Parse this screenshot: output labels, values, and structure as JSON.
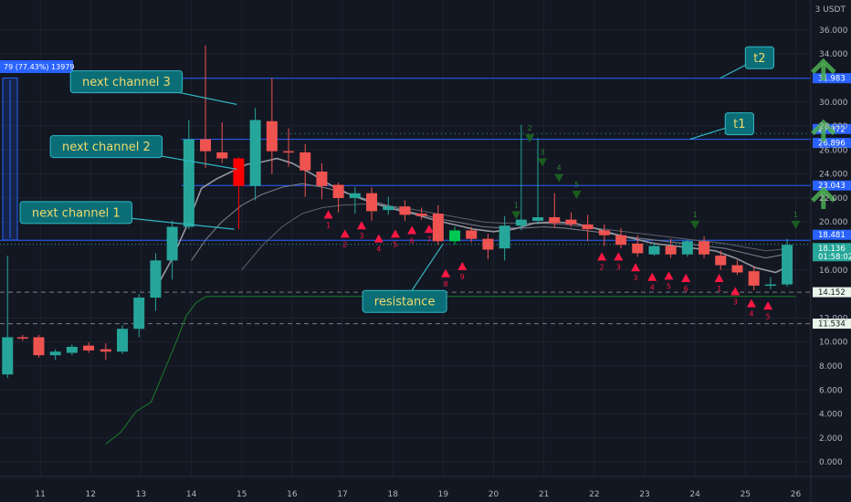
{
  "header": {
    "currency": "3 USDT",
    "range_label": "79 (77.43%) 13979"
  },
  "chart_data": {
    "type": "candlestick",
    "title": "",
    "xlabel": "",
    "ylabel": "",
    "ylim": [
      -1.2,
      38.5
    ],
    "xlim": [
      10.2,
      26.3
    ],
    "y_ticks": [
      "36.000",
      "34.000",
      "30.000",
      "28.000",
      "26.000",
      "24.000",
      "22.000",
      "20.000",
      "16.000",
      "12.000",
      "10.000",
      "8.000",
      "6.000",
      "4.000",
      "2.000",
      "0.000"
    ],
    "y_tick_values": [
      36,
      34,
      30,
      28,
      26,
      24,
      22,
      20,
      16,
      12,
      10,
      8,
      6,
      4,
      2,
      0
    ],
    "x_ticks": [
      "11",
      "12",
      "13",
      "14",
      "15",
      "16",
      "17",
      "18",
      "19",
      "20",
      "21",
      "22",
      "23",
      "24",
      "25",
      "26"
    ],
    "x_tick_values": [
      11,
      12,
      13,
      14,
      15,
      16,
      17,
      18,
      19,
      20,
      21,
      22,
      23,
      24,
      25,
      26
    ],
    "grid": true,
    "candles": [
      {
        "t": 10.35,
        "o": 7.3,
        "h": 17.2,
        "l": 7.0,
        "c": 10.4
      },
      {
        "t": 10.65,
        "o": 10.4,
        "h": 10.6,
        "l": 10.1,
        "c": 10.3
      },
      {
        "t": 10.97,
        "o": 10.4,
        "h": 10.6,
        "l": 8.7,
        "c": 8.9
      },
      {
        "t": 11.3,
        "o": 8.9,
        "h": 9.4,
        "l": 8.5,
        "c": 9.2
      },
      {
        "t": 11.63,
        "o": 9.1,
        "h": 9.8,
        "l": 8.9,
        "c": 9.6
      },
      {
        "t": 11.96,
        "o": 9.7,
        "h": 10.0,
        "l": 9.1,
        "c": 9.3
      },
      {
        "t": 12.3,
        "o": 9.4,
        "h": 9.9,
        "l": 8.5,
        "c": 9.2
      },
      {
        "t": 12.63,
        "o": 9.2,
        "h": 11.4,
        "l": 9.0,
        "c": 11.1
      },
      {
        "t": 12.96,
        "o": 11.1,
        "h": 14.0,
        "l": 10.4,
        "c": 13.7
      },
      {
        "t": 13.29,
        "o": 13.7,
        "h": 17.4,
        "l": 12.6,
        "c": 16.8
      },
      {
        "t": 13.62,
        "o": 16.8,
        "h": 20.1,
        "l": 15.2,
        "c": 19.6
      },
      {
        "t": 13.95,
        "o": 19.6,
        "h": 28.5,
        "l": 19.4,
        "c": 26.9
      },
      {
        "t": 14.28,
        "o": 26.9,
        "h": 34.7,
        "l": 24.5,
        "c": 25.9
      },
      {
        "t": 14.61,
        "o": 25.8,
        "h": 28.3,
        "l": 24.9,
        "c": 25.3
      },
      {
        "t": 14.94,
        "o": 25.3,
        "h": 25.4,
        "l": 19.4,
        "c": 23.0
      },
      {
        "t": 15.27,
        "o": 23.0,
        "h": 29.5,
        "l": 21.8,
        "c": 28.5
      },
      {
        "t": 15.6,
        "o": 28.4,
        "h": 32.0,
        "l": 24.0,
        "c": 25.9
      },
      {
        "t": 15.93,
        "o": 25.9,
        "h": 27.8,
        "l": 24.6,
        "c": 25.8
      },
      {
        "t": 16.26,
        "o": 25.8,
        "h": 26.5,
        "l": 22.1,
        "c": 24.3
      },
      {
        "t": 16.59,
        "o": 24.2,
        "h": 24.9,
        "l": 21.9,
        "c": 23.0
      },
      {
        "t": 16.92,
        "o": 23.1,
        "h": 23.3,
        "l": 20.8,
        "c": 22.0
      },
      {
        "t": 17.25,
        "o": 22.0,
        "h": 22.9,
        "l": 20.7,
        "c": 22.4
      },
      {
        "t": 17.58,
        "o": 22.4,
        "h": 22.9,
        "l": 20.1,
        "c": 20.9
      },
      {
        "t": 17.91,
        "o": 21.0,
        "h": 22.1,
        "l": 20.6,
        "c": 21.3
      },
      {
        "t": 18.24,
        "o": 21.3,
        "h": 21.8,
        "l": 20.1,
        "c": 20.6
      },
      {
        "t": 18.57,
        "o": 20.7,
        "h": 21.2,
        "l": 20.2,
        "c": 20.5
      },
      {
        "t": 18.9,
        "o": 20.7,
        "h": 21.4,
        "l": 18.1,
        "c": 18.4
      },
      {
        "t": 19.23,
        "o": 18.4,
        "h": 19.6,
        "l": 18.1,
        "c": 19.3
      },
      {
        "t": 19.56,
        "o": 19.3,
        "h": 19.6,
        "l": 18.3,
        "c": 18.6
      },
      {
        "t": 19.89,
        "o": 18.6,
        "h": 19.0,
        "l": 16.9,
        "c": 17.7
      },
      {
        "t": 20.22,
        "o": 17.8,
        "h": 20.5,
        "l": 16.8,
        "c": 19.7
      },
      {
        "t": 20.55,
        "o": 19.7,
        "h": 28.1,
        "l": 19.3,
        "c": 20.2
      },
      {
        "t": 20.88,
        "o": 20.1,
        "h": 27.0,
        "l": 19.8,
        "c": 20.4
      },
      {
        "t": 21.21,
        "o": 20.4,
        "h": 22.4,
        "l": 19.5,
        "c": 19.9
      },
      {
        "t": 21.54,
        "o": 20.2,
        "h": 20.8,
        "l": 19.6,
        "c": 19.8
      },
      {
        "t": 21.87,
        "o": 19.8,
        "h": 20.6,
        "l": 18.4,
        "c": 19.4
      },
      {
        "t": 22.2,
        "o": 19.3,
        "h": 19.8,
        "l": 18.0,
        "c": 18.9
      },
      {
        "t": 22.53,
        "o": 18.9,
        "h": 19.5,
        "l": 17.8,
        "c": 18.1
      },
      {
        "t": 22.86,
        "o": 18.2,
        "h": 18.9,
        "l": 17.1,
        "c": 17.4
      },
      {
        "t": 23.19,
        "o": 17.3,
        "h": 18.3,
        "l": 17.2,
        "c": 18.0
      },
      {
        "t": 23.52,
        "o": 18.0,
        "h": 18.6,
        "l": 17.0,
        "c": 17.3
      },
      {
        "t": 23.85,
        "o": 17.3,
        "h": 18.5,
        "l": 17.1,
        "c": 18.4
      },
      {
        "t": 24.18,
        "o": 18.4,
        "h": 18.8,
        "l": 17.0,
        "c": 17.3
      },
      {
        "t": 24.51,
        "o": 17.2,
        "h": 17.6,
        "l": 16.0,
        "c": 16.4
      },
      {
        "t": 24.84,
        "o": 16.4,
        "h": 16.8,
        "l": 15.6,
        "c": 15.8
      },
      {
        "t": 25.17,
        "o": 15.9,
        "h": 16.3,
        "l": 14.3,
        "c": 14.7
      },
      {
        "t": 25.5,
        "o": 14.7,
        "h": 15.4,
        "l": 14.4,
        "c": 14.8
      },
      {
        "t": 25.83,
        "o": 14.8,
        "h": 18.6,
        "l": 14.6,
        "c": 18.1
      }
    ],
    "levels": [
      {
        "name": "t2",
        "value": 31.983,
        "label": "31.983",
        "color": "#2962ff"
      },
      {
        "name": "t1",
        "value": 26.896,
        "label": "26.896",
        "color": "#2962ff"
      },
      {
        "name": "dotted",
        "value": 27.372,
        "label": "27.372",
        "color": "#2962ff"
      },
      {
        "name": "level-23",
        "value": 23.043,
        "label": "23.043",
        "color": "#2962ff"
      },
      {
        "name": "level-18",
        "value": 18.481,
        "label": "18.481",
        "color": "#2962ff"
      },
      {
        "name": "current",
        "value": 18.136,
        "label": "18.136",
        "sub": "01:58:02",
        "color": "#26a69a"
      },
      {
        "name": "support-14",
        "value": 14.152,
        "label": "14.152",
        "color": "#787b86"
      },
      {
        "name": "support-11",
        "value": 11.534,
        "label": "11.534",
        "color": "#787b86"
      }
    ],
    "ma_fast": [
      [
        13.3,
        14.5
      ],
      [
        13.6,
        16.8
      ],
      [
        13.9,
        19.6
      ],
      [
        14.2,
        22.8
      ],
      [
        14.5,
        23.6
      ],
      [
        14.8,
        24.2
      ],
      [
        15.1,
        24.8
      ],
      [
        15.4,
        25.0
      ],
      [
        15.7,
        25.3
      ],
      [
        16.0,
        24.9
      ],
      [
        16.4,
        24.0
      ],
      [
        16.8,
        23.0
      ],
      [
        17.2,
        22.2
      ],
      [
        17.6,
        21.6
      ],
      [
        18.0,
        21.1
      ],
      [
        18.4,
        20.7
      ],
      [
        18.8,
        20.2
      ],
      [
        19.2,
        19.8
      ],
      [
        19.6,
        19.4
      ],
      [
        20.0,
        19.2
      ],
      [
        20.4,
        19.4
      ],
      [
        20.8,
        19.9
      ],
      [
        21.2,
        20.0
      ],
      [
        21.6,
        19.9
      ],
      [
        22.0,
        19.5
      ],
      [
        22.4,
        19.0
      ],
      [
        22.8,
        18.6
      ],
      [
        23.2,
        18.2
      ],
      [
        23.6,
        18.0
      ],
      [
        24.0,
        17.8
      ],
      [
        24.4,
        17.6
      ],
      [
        24.8,
        17.0
      ],
      [
        25.2,
        16.2
      ],
      [
        25.6,
        15.8
      ],
      [
        25.9,
        16.4
      ]
    ],
    "ma_slow": [
      [
        14.0,
        16.8
      ],
      [
        14.3,
        18.6
      ],
      [
        14.6,
        20.0
      ],
      [
        15.0,
        21.4
      ],
      [
        15.4,
        22.3
      ],
      [
        15.8,
        22.9
      ],
      [
        16.2,
        23.2
      ],
      [
        16.6,
        22.9
      ],
      [
        17.0,
        22.5
      ],
      [
        17.4,
        22.0
      ],
      [
        17.8,
        21.5
      ],
      [
        18.2,
        21.0
      ],
      [
        18.6,
        20.6
      ],
      [
        19.0,
        20.2
      ],
      [
        19.4,
        19.9
      ],
      [
        19.8,
        19.6
      ],
      [
        20.2,
        19.5
      ],
      [
        20.6,
        19.5
      ],
      [
        21.0,
        19.6
      ],
      [
        21.4,
        19.5
      ],
      [
        21.8,
        19.3
      ],
      [
        22.2,
        19.1
      ],
      [
        22.6,
        18.8
      ],
      [
        23.0,
        18.6
      ],
      [
        23.4,
        18.4
      ],
      [
        23.8,
        18.2
      ],
      [
        24.2,
        18.0
      ],
      [
        24.6,
        17.8
      ],
      [
        25.0,
        17.4
      ],
      [
        25.4,
        17.0
      ],
      [
        25.9,
        17.4
      ]
    ],
    "ma_long": [
      [
        15.0,
        16.0
      ],
      [
        15.4,
        18.0
      ],
      [
        15.8,
        19.6
      ],
      [
        16.2,
        20.7
      ],
      [
        16.6,
        21.2
      ],
      [
        17.0,
        21.4
      ],
      [
        17.4,
        21.5
      ],
      [
        17.8,
        21.4
      ],
      [
        18.2,
        21.2
      ],
      [
        18.6,
        20.9
      ],
      [
        19.0,
        20.6
      ],
      [
        19.4,
        20.3
      ],
      [
        19.8,
        20.0
      ],
      [
        20.2,
        19.9
      ],
      [
        20.6,
        19.9
      ],
      [
        21.0,
        19.9
      ],
      [
        21.4,
        19.8
      ],
      [
        21.8,
        19.6
      ],
      [
        22.2,
        19.4
      ],
      [
        22.6,
        19.2
      ],
      [
        23.0,
        19.0
      ],
      [
        23.4,
        18.8
      ],
      [
        23.8,
        18.6
      ],
      [
        24.2,
        18.4
      ],
      [
        24.6,
        18.2
      ],
      [
        25.0,
        17.9
      ],
      [
        25.4,
        17.6
      ],
      [
        25.9,
        17.8
      ]
    ],
    "trail_stop": [
      [
        12.3,
        1.5
      ],
      [
        12.6,
        2.5
      ],
      [
        12.9,
        4.2
      ],
      [
        13.2,
        5.0
      ],
      [
        13.45,
        7.5
      ],
      [
        13.7,
        10.0
      ],
      [
        13.9,
        12.2
      ],
      [
        14.1,
        13.3
      ],
      [
        14.3,
        13.8
      ],
      [
        26.0,
        13.8
      ]
    ],
    "buy_signals": [
      {
        "t": 20.45,
        "y": 20.6,
        "n": "1"
      },
      {
        "t": 20.72,
        "y": 27.0,
        "n": "2"
      },
      {
        "t": 20.97,
        "y": 25.0,
        "n": "3"
      },
      {
        "t": 21.3,
        "y": 23.7,
        "n": "4"
      },
      {
        "t": 21.65,
        "y": 22.3,
        "n": "5"
      },
      {
        "t": 24.0,
        "y": 19.8,
        "n": "1"
      },
      {
        "t": 26.0,
        "y": 19.8,
        "n": "1"
      }
    ],
    "sell_signals": [
      {
        "t": 16.72,
        "y": 20.6,
        "n": "1"
      },
      {
        "t": 17.05,
        "y": 19.0,
        "n": "2"
      },
      {
        "t": 17.38,
        "y": 19.7,
        "n": "3"
      },
      {
        "t": 17.72,
        "y": 18.6,
        "n": "4"
      },
      {
        "t": 18.05,
        "y": 19.0,
        "n": "5"
      },
      {
        "t": 18.38,
        "y": 19.3,
        "n": "6"
      },
      {
        "t": 18.72,
        "y": 19.4,
        "n": "7"
      },
      {
        "t": 19.05,
        "y": 15.7,
        "n": "8"
      },
      {
        "t": 19.38,
        "y": 16.3,
        "n": "9"
      },
      {
        "t": 22.15,
        "y": 17.1,
        "n": "2"
      },
      {
        "t": 22.48,
        "y": 17.1,
        "n": "3"
      },
      {
        "t": 22.82,
        "y": 16.2,
        "n": "3"
      },
      {
        "t": 23.15,
        "y": 15.4,
        "n": "4"
      },
      {
        "t": 23.48,
        "y": 15.5,
        "n": "5"
      },
      {
        "t": 23.82,
        "y": 15.3,
        "n": "6"
      },
      {
        "t": 24.48,
        "y": 15.3,
        "n": "1"
      },
      {
        "t": 24.8,
        "y": 14.2,
        "n": "3"
      },
      {
        "t": 25.12,
        "y": 13.2,
        "n": "4"
      },
      {
        "t": 25.45,
        "y": 13.0,
        "n": "5"
      }
    ],
    "annotations": [
      {
        "text": "next channel 3",
        "box_t": 11.6,
        "box_y": 32.6,
        "tip_t": 14.9,
        "tip_y": 29.8
      },
      {
        "text": "next channel 2",
        "box_t": 11.2,
        "box_y": 27.2,
        "tip_t": 14.9,
        "tip_y": 24.4
      },
      {
        "text": "next channel 1",
        "box_t": 10.6,
        "box_y": 21.7,
        "tip_t": 14.85,
        "tip_y": 19.4
      },
      {
        "text": "resistance",
        "box_t": 17.4,
        "box_y": 14.3,
        "tip_t": 19.0,
        "tip_y": 18.2
      },
      {
        "text": "t2",
        "box_t": 25.0,
        "box_y": 34.6,
        "tip_t": 24.5,
        "tip_y": 31.99
      },
      {
        "text": "t1",
        "box_t": 24.6,
        "box_y": 29.1,
        "tip_t": 23.9,
        "tip_y": 26.9
      }
    ],
    "arrows_up": [
      {
        "t": 26.55,
        "y": 32.7
      },
      {
        "t": 26.55,
        "y": 27.6
      },
      {
        "t": 26.55,
        "y": 22.0
      }
    ],
    "colors": {
      "up": "#26a69a",
      "down": "#ef5350",
      "green_candle": "#00c853",
      "strong_red": "#ff0000",
      "buy": "#1b5e20",
      "sell": "#ff1744",
      "arrow": "#4caf50",
      "callout_bg": "#0b6e77",
      "callout_border": "#2fb8c4",
      "callout_text": "#f0d96a"
    }
  }
}
